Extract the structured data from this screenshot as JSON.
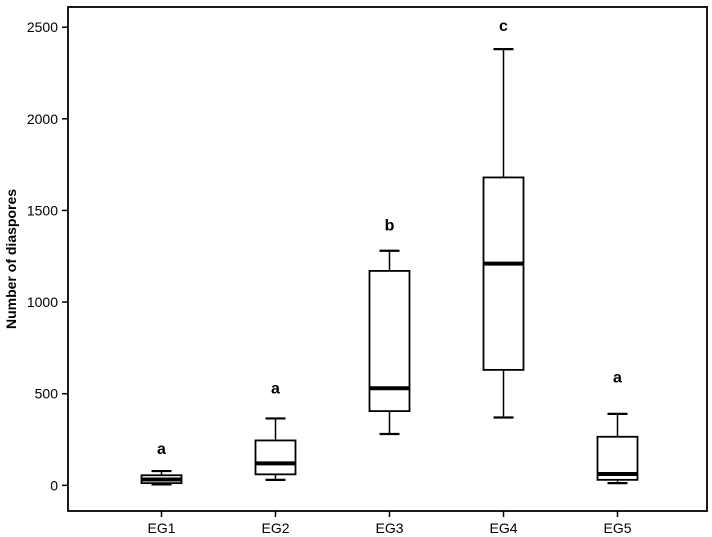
{
  "figure": {
    "background": "#ffffff",
    "stroke_color": "#000000",
    "box_fill": "#ffffff"
  },
  "chart_data": {
    "type": "boxplot",
    "title": "",
    "xlabel": "",
    "ylabel": "Number of diaspores",
    "ylim": [
      -140,
      2610
    ],
    "yticks": [
      0,
      500,
      1000,
      1500,
      2000,
      2500
    ],
    "grid": false,
    "legend": "none",
    "categories": [
      "EG1",
      "EG2",
      "EG3",
      "EG4",
      "EG5"
    ],
    "boxes": [
      {
        "category": "EG1",
        "whisker_low": 5,
        "q1": 12,
        "median": 32,
        "q3": 55,
        "whisker_high": 78,
        "sig_letter": "a",
        "letter_y": 170
      },
      {
        "category": "EG2",
        "whisker_low": 30,
        "q1": 60,
        "median": 120,
        "q3": 245,
        "whisker_high": 365,
        "sig_letter": "a",
        "letter_y": 500
      },
      {
        "category": "EG3",
        "whisker_low": 280,
        "q1": 405,
        "median": 530,
        "q3": 1170,
        "whisker_high": 1280,
        "sig_letter": "b",
        "letter_y": 1390
      },
      {
        "category": "EG4",
        "whisker_low": 370,
        "q1": 630,
        "median": 1210,
        "q3": 1680,
        "whisker_high": 2380,
        "sig_letter": "c",
        "letter_y": 2480
      },
      {
        "category": "EG5",
        "whisker_low": 12,
        "q1": 30,
        "median": 62,
        "q3": 265,
        "whisker_high": 390,
        "sig_letter": "a",
        "letter_y": 560
      }
    ]
  }
}
